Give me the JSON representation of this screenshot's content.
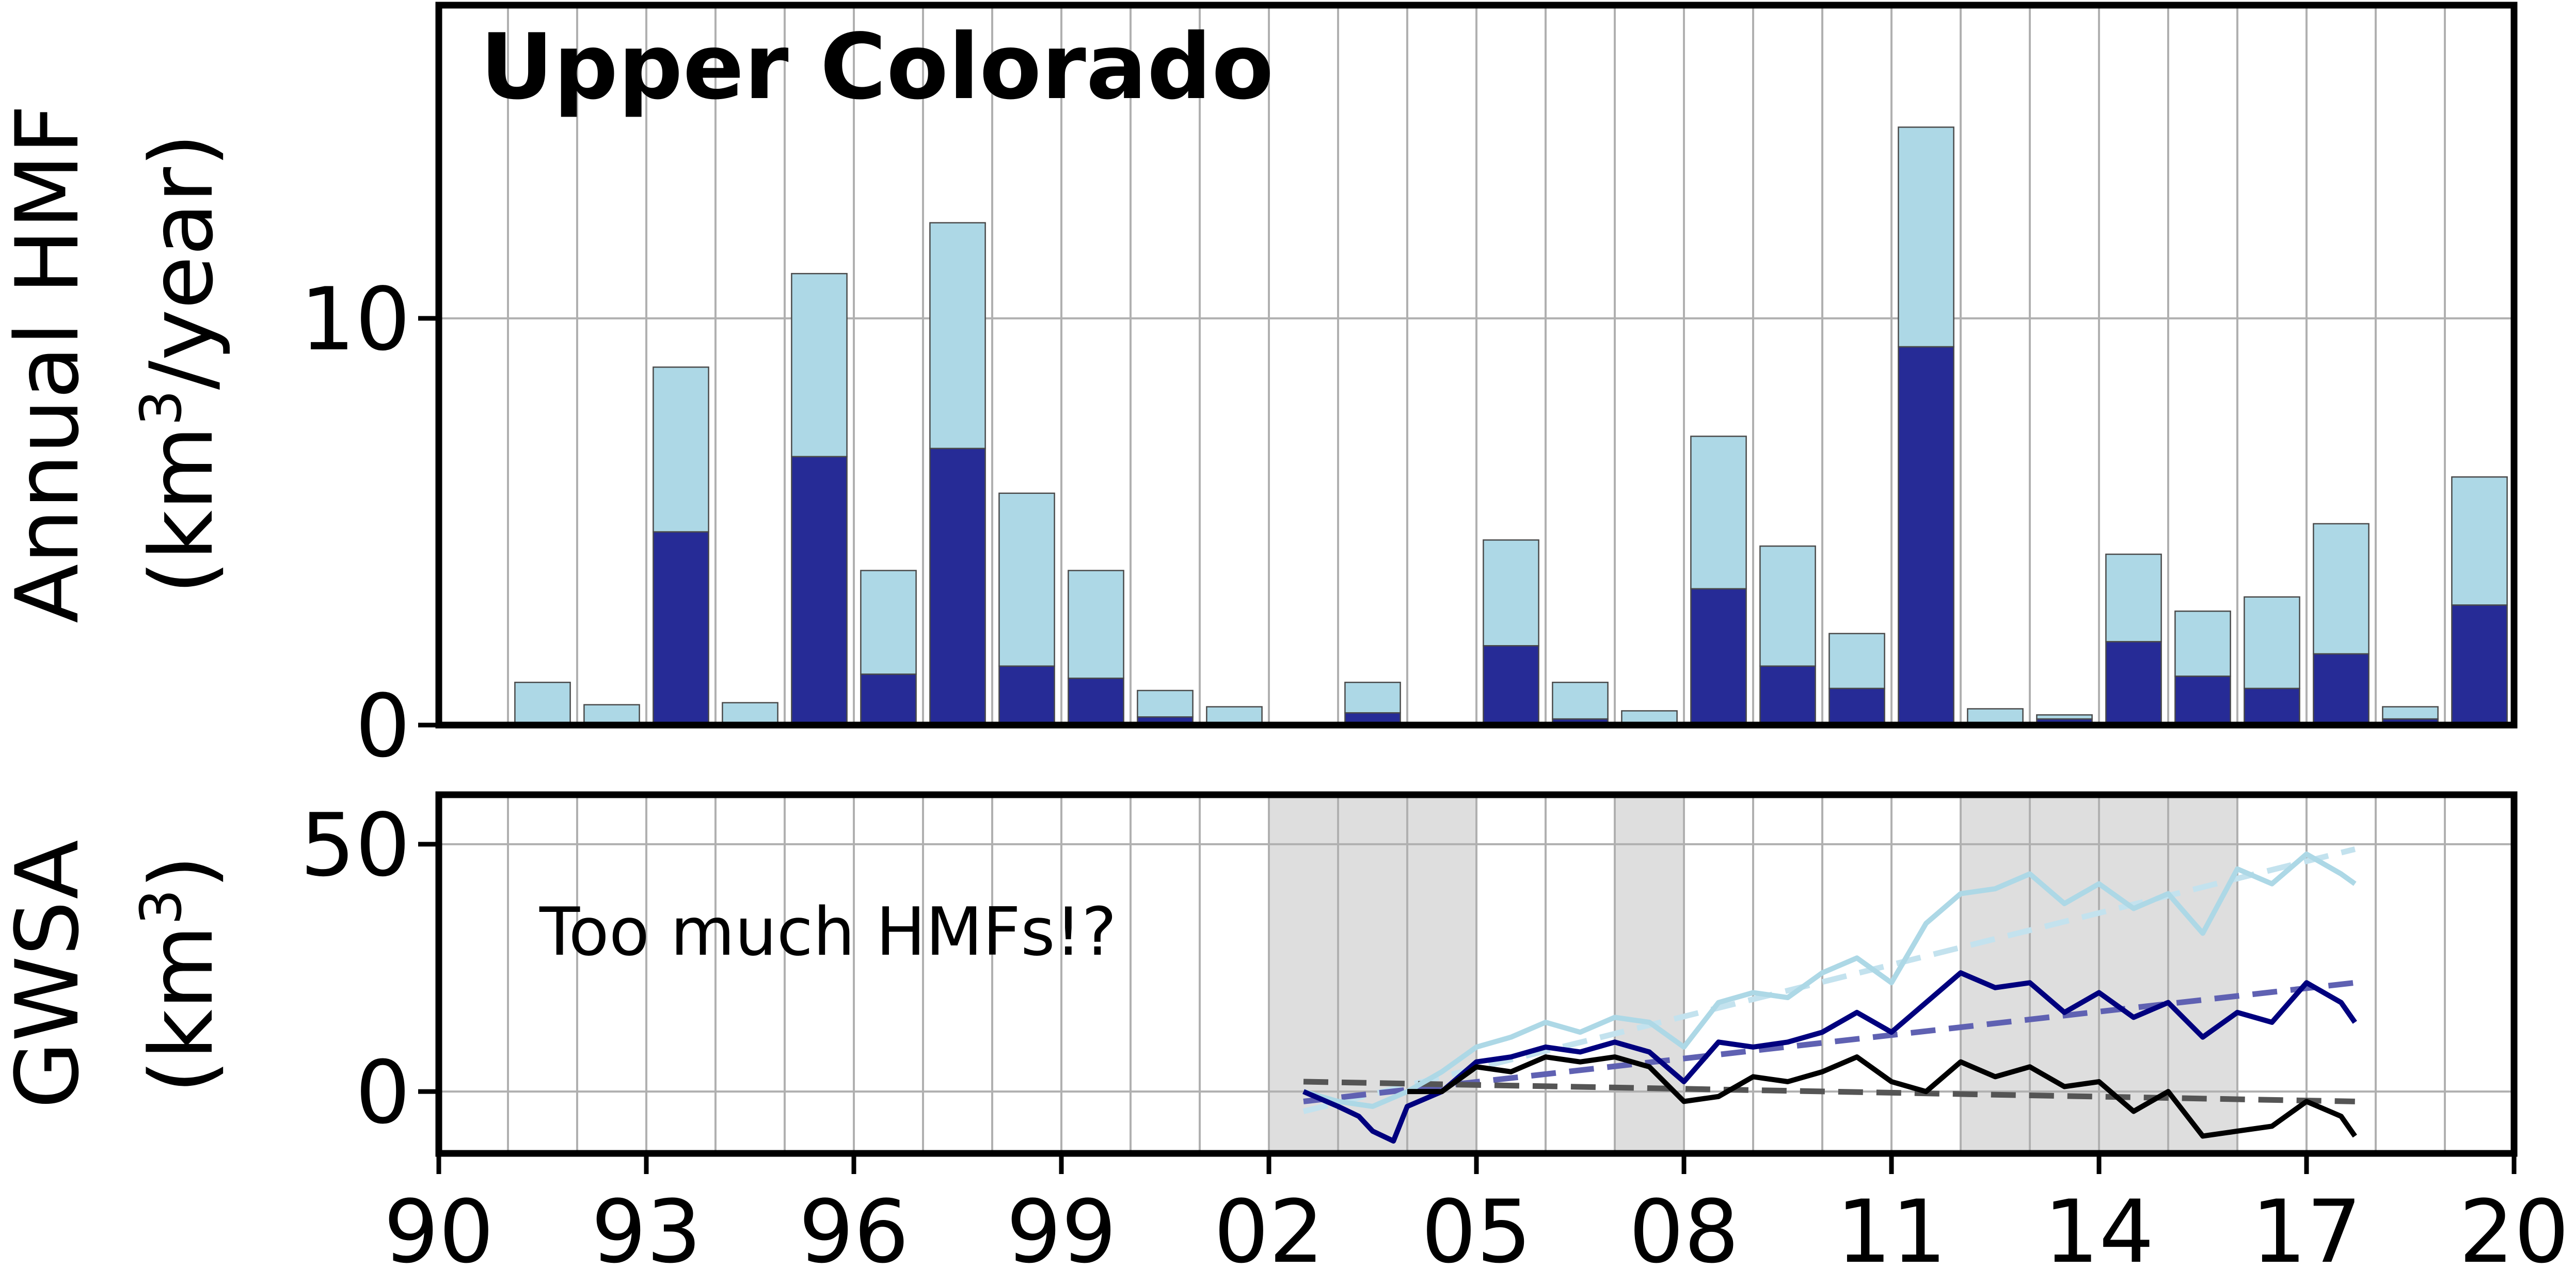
{
  "chart_data": [
    {
      "type": "bar",
      "title": "Upper Colorado",
      "ylabel_line1": "Annual HMF",
      "ylabel_line2_prefix": "(km",
      "ylabel_line2_sup": "3",
      "ylabel_line2_suffix": "/year)",
      "x_unit": "year",
      "xlim": [
        1990,
        2020
      ],
      "ylim": [
        0,
        17.7
      ],
      "yticks": [
        {
          "value": 0,
          "label": "0"
        },
        {
          "value": 10,
          "label": "10"
        }
      ],
      "grid": true,
      "stacked": true,
      "colors": {
        "series1": "#262b96",
        "series2": "#add8e6"
      },
      "categories": [
        1991,
        1992,
        1993,
        1994,
        1995,
        1996,
        1997,
        1998,
        1999,
        2000,
        2001,
        2002,
        2003,
        2004,
        2005,
        2006,
        2007,
        2008,
        2009,
        2010,
        2011,
        2012,
        2013,
        2014,
        2015,
        2016,
        2017,
        2018,
        2019
      ],
      "series": [
        {
          "values": [
            0.0,
            0.0,
            4.75,
            0.0,
            6.6,
            1.25,
            6.8,
            1.45,
            1.15,
            0.2,
            0.0,
            0.0,
            0.3,
            0.0,
            1.95,
            0.15,
            0.0,
            3.35,
            1.45,
            0.9,
            9.3,
            0.0,
            0.15,
            2.05,
            1.2,
            0.9,
            1.75,
            0.15,
            2.95
          ]
        },
        {
          "values": [
            1.05,
            0.5,
            4.05,
            0.55,
            4.5,
            2.55,
            5.55,
            4.25,
            2.65,
            0.65,
            0.45,
            0.0,
            0.75,
            0.0,
            2.6,
            0.9,
            0.35,
            3.75,
            2.95,
            1.35,
            5.4,
            0.4,
            0.1,
            2.15,
            1.6,
            2.25,
            3.2,
            0.3,
            3.15
          ]
        }
      ]
    },
    {
      "type": "line",
      "ylabel_line1": "GWSA",
      "ylabel_line2_prefix": "(km",
      "ylabel_line2_sup": "3",
      "ylabel_line2_suffix": ")",
      "annotation": "Too much HMFs!?",
      "x_unit": "year",
      "xlim": [
        1990,
        2020
      ],
      "ylim": [
        -12.5,
        60
      ],
      "yticks": [
        {
          "value": 0,
          "label": "0"
        },
        {
          "value": 50,
          "label": "50"
        }
      ],
      "xticks": [
        {
          "value": 1990,
          "label": "90"
        },
        {
          "value": 1993,
          "label": "93"
        },
        {
          "value": 1996,
          "label": "96"
        },
        {
          "value": 1999,
          "label": "99"
        },
        {
          "value": 2002,
          "label": "02"
        },
        {
          "value": 2005,
          "label": "05"
        },
        {
          "value": 2008,
          "label": "08"
        },
        {
          "value": 2011,
          "label": "11"
        },
        {
          "value": 2014,
          "label": "14"
        },
        {
          "value": 2017,
          "label": "17"
        },
        {
          "value": 2020,
          "label": "20"
        }
      ],
      "grid": true,
      "shaded_periods": [
        [
          2002,
          2005
        ],
        [
          2007,
          2008
        ],
        [
          2012,
          2016
        ]
      ],
      "shade_color": "#dedede",
      "series": [
        {
          "color": "#add8e6",
          "x": [
            2002.5,
            2003.0,
            2003.5,
            2004.0,
            2004.5,
            2005.0,
            2005.5,
            2006.0,
            2006.5,
            2007.0,
            2007.5,
            2008.0,
            2008.5,
            2009.0,
            2009.5,
            2010.0,
            2010.5,
            2011.0,
            2011.5,
            2012.0,
            2012.5,
            2013.0,
            2013.5,
            2014.0,
            2014.5,
            2015.0,
            2015.5,
            2016.0,
            2016.5,
            2017.0,
            2017.5,
            2017.7
          ],
          "y": [
            0,
            -2,
            -3,
            0,
            4,
            9,
            11,
            14,
            12,
            15,
            14,
            9,
            18,
            20,
            19,
            24,
            27,
            22,
            34,
            40,
            41,
            44,
            38,
            42,
            37,
            40,
            32,
            45,
            42,
            48,
            44,
            42
          ]
        },
        {
          "color": "#00007e",
          "x": [
            2002.5,
            2003.0,
            2003.3,
            2003.5,
            2003.8,
            2004.0,
            2004.5,
            2005.0,
            2005.5,
            2006.0,
            2006.5,
            2007.0,
            2007.5,
            2008.0,
            2008.5,
            2009.0,
            2009.5,
            2010.0,
            2010.5,
            2011.0,
            2011.5,
            2012.0,
            2012.5,
            2013.0,
            2013.5,
            2014.0,
            2014.5,
            2015.0,
            2015.5,
            2016.0,
            2016.5,
            2017.0,
            2017.5,
            2017.7
          ],
          "y": [
            0,
            -3,
            -5,
            -8,
            -10,
            -3,
            0,
            6,
            7,
            9,
            8,
            10,
            8,
            2,
            10,
            9,
            10,
            12,
            16,
            12,
            18,
            24,
            21,
            22,
            16,
            20,
            15,
            18,
            11,
            16,
            14,
            22,
            18,
            14
          ]
        },
        {
          "color": "#000000",
          "x": [
            2004.0,
            2004.5,
            2005.0,
            2005.5,
            2006.0,
            2006.5,
            2007.0,
            2007.5,
            2008.0,
            2008.5,
            2009.0,
            2009.5,
            2010.0,
            2010.5,
            2011.0,
            2011.5,
            2012.0,
            2012.5,
            2013.0,
            2013.5,
            2014.0,
            2014.5,
            2015.0,
            2015.5,
            2016.0,
            2016.5,
            2017.0,
            2017.5,
            2017.7
          ],
          "y": [
            0,
            0,
            5,
            4,
            7,
            6,
            7,
            5,
            -2,
            -1,
            3,
            2,
            4,
            7,
            2,
            0,
            6,
            3,
            5,
            1,
            2,
            -4,
            0,
            -9,
            -8,
            -7,
            -2,
            -5,
            -9
          ]
        }
      ],
      "trend_lines": [
        {
          "color": "#c3e2ee",
          "x": [
            2002.5,
            2017.7
          ],
          "y": [
            -4,
            49
          ]
        },
        {
          "color": "#5f61b2",
          "x": [
            2002.5,
            2017.7
          ],
          "y": [
            -2,
            22
          ]
        },
        {
          "color": "#555555",
          "x": [
            2002.5,
            2017.7
          ],
          "y": [
            2,
            -2
          ]
        }
      ]
    }
  ]
}
